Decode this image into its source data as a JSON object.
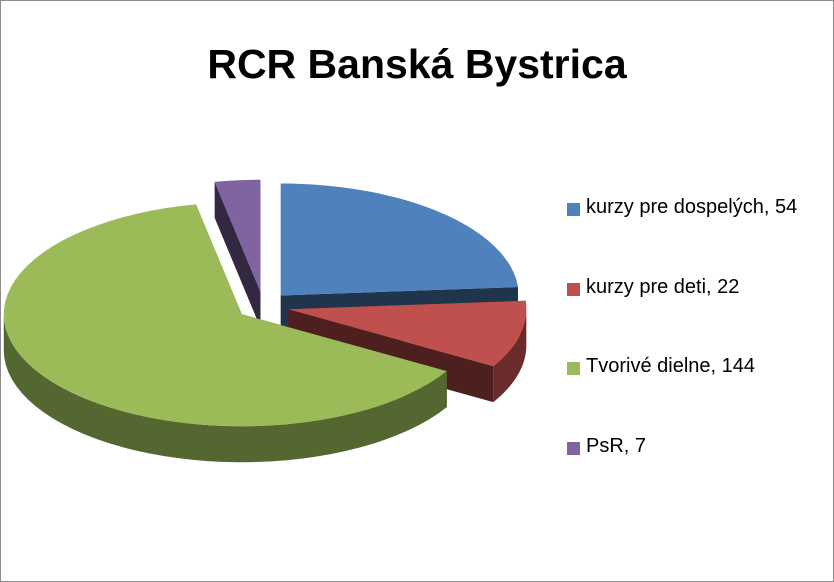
{
  "chart_data": {
    "type": "pie",
    "title": "RCR Banská Bystrica",
    "categories": [
      "kurzy pre dospelých, 54",
      "kurzy pre deti, 22",
      "Tvorivé dielne, 144",
      "PsR, 7"
    ],
    "values": [
      54,
      22,
      144,
      7
    ],
    "colors": [
      "#4f81bd",
      "#c0504d",
      "#9bbb59",
      "#8064a2"
    ],
    "legend": "right",
    "three_d": true,
    "exploded": true
  }
}
